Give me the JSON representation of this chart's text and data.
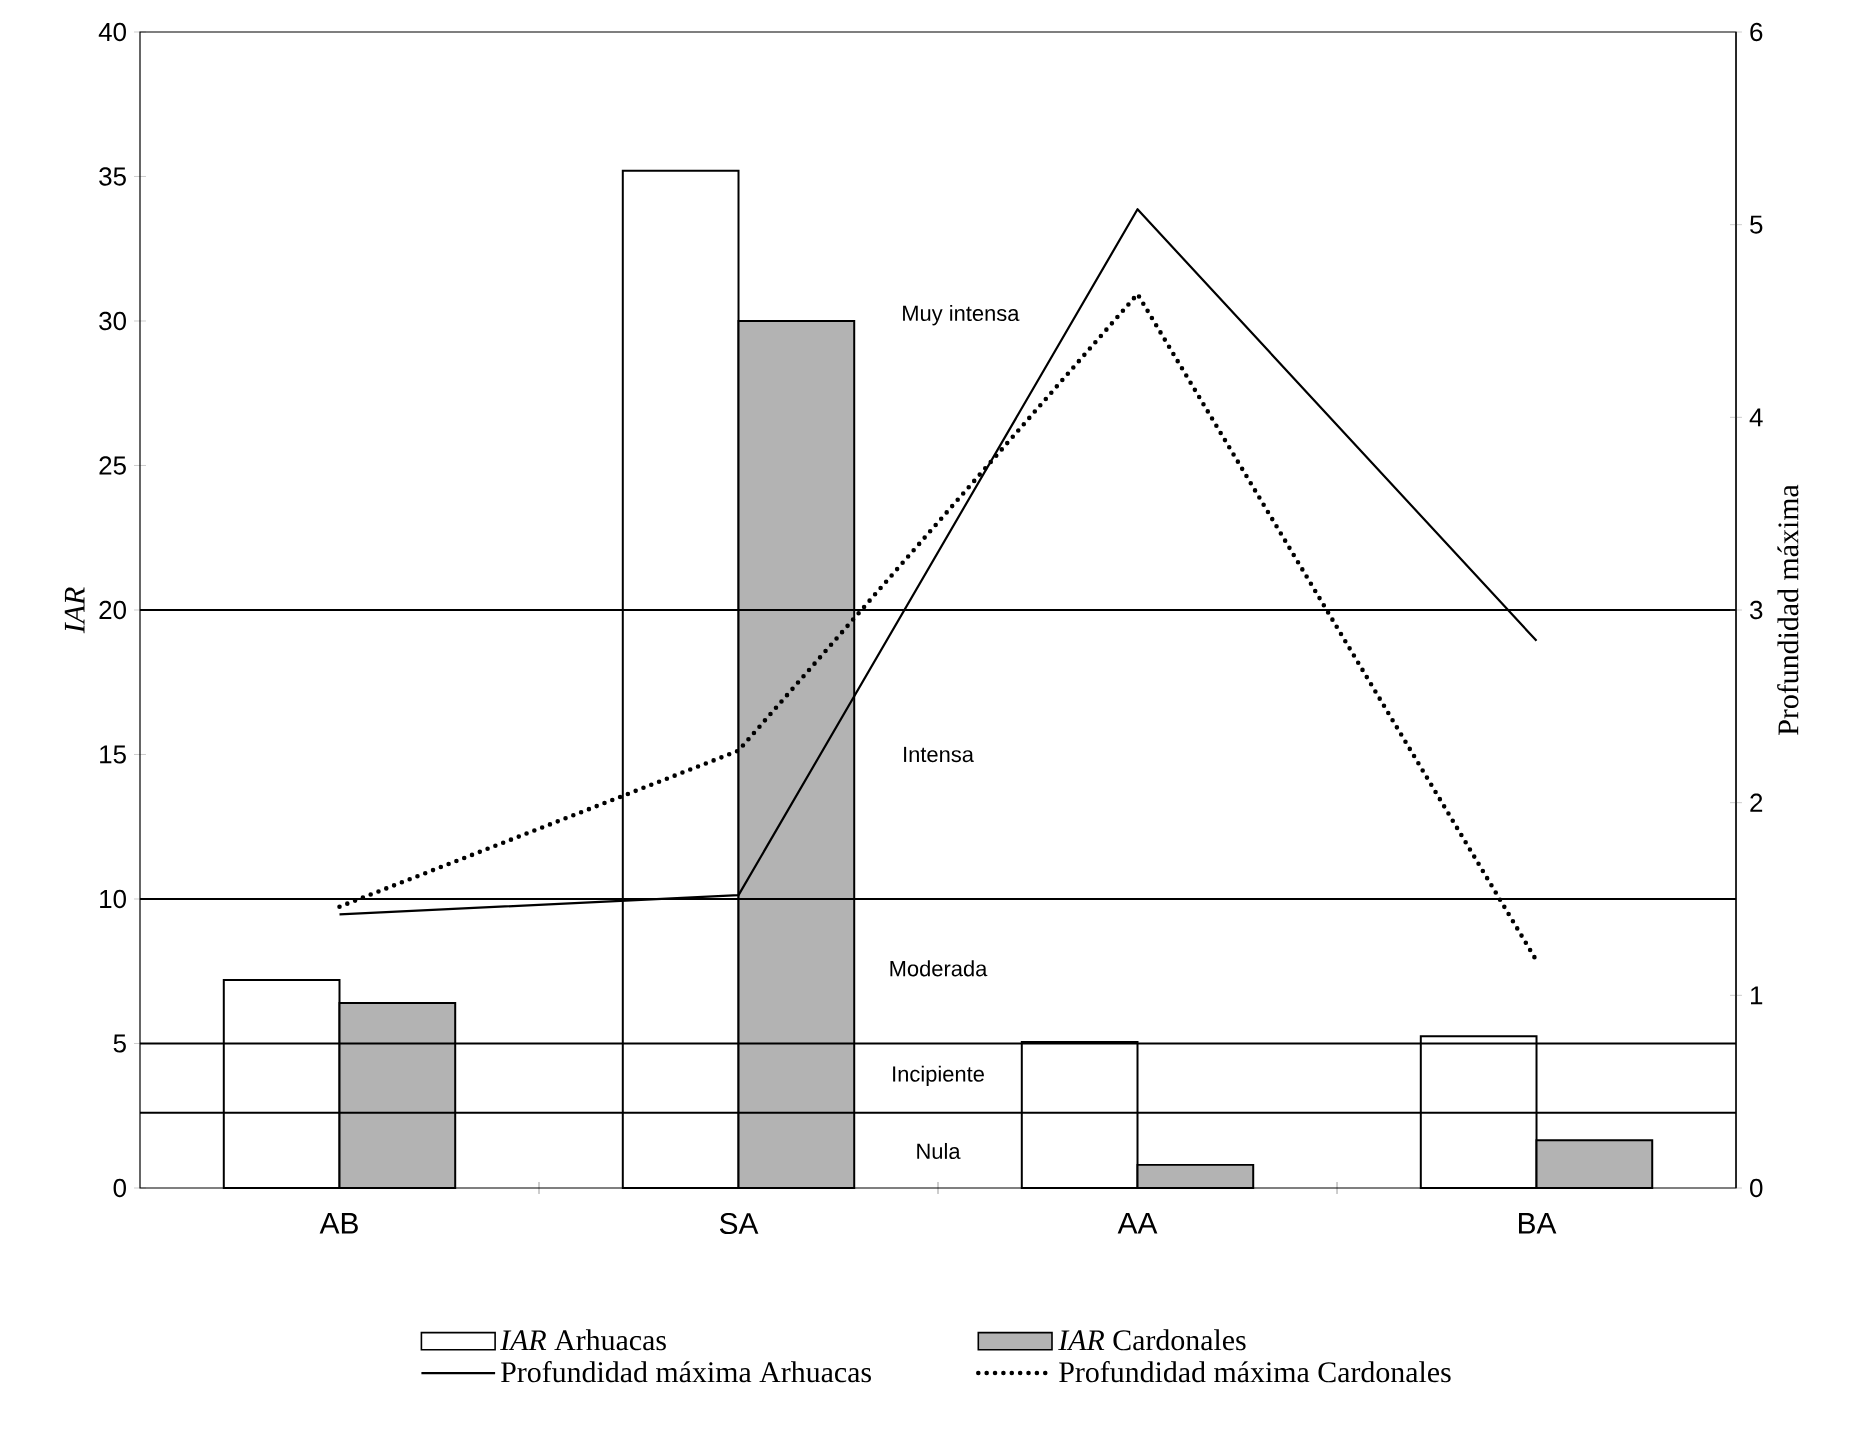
{
  "chart_data": {
    "type": "bar",
    "ylabel": "IAR",
    "y2label": "Profundidad máxima",
    "categories": [
      "AB",
      "SA",
      "AA",
      "BA"
    ],
    "series": [
      {
        "name": "*IAR* Arhuacas",
        "color": "#ffffff",
        "values": [
          7.2,
          35.2,
          5.05,
          5.25
        ]
      },
      {
        "name": "*IAR* Cardonales",
        "color": "#b3b3b3",
        "values": [
          6.4,
          30.0,
          0.8,
          1.65
        ]
      },
      {
        "name": "Profundidad máxima Arhuacas",
        "type": "line",
        "axis": "y2",
        "color": "#000000",
        "line_style": "solid",
        "values": [
          1.42,
          1.52,
          5.08,
          2.84
        ]
      },
      {
        "name": "Profundidad máxima Cardonales",
        "type": "line",
        "axis": "y2",
        "color": "#000000",
        "line_style": "dotted",
        "values": [
          1.46,
          2.27,
          4.64,
          1.18
        ]
      }
    ],
    "ylim": [
      0,
      40
    ],
    "yticks": [
      0,
      5,
      10,
      15,
      20,
      25,
      30,
      35,
      40
    ],
    "y2lim": [
      0,
      6
    ],
    "y2ticks": [
      0,
      1,
      2,
      3,
      4,
      5,
      6
    ],
    "ref_lines": [
      {
        "axis": "y",
        "value": 2.6
      },
      {
        "axis": "y",
        "value": 5
      },
      {
        "axis": "y",
        "value": 10
      },
      {
        "axis": "y",
        "value": 20
      }
    ],
    "annotations": [
      "Nula",
      "Incipiente",
      "Moderada",
      "Intensa",
      "Muy intensa"
    ],
    "marker": "none",
    "legend": "bottom"
  }
}
